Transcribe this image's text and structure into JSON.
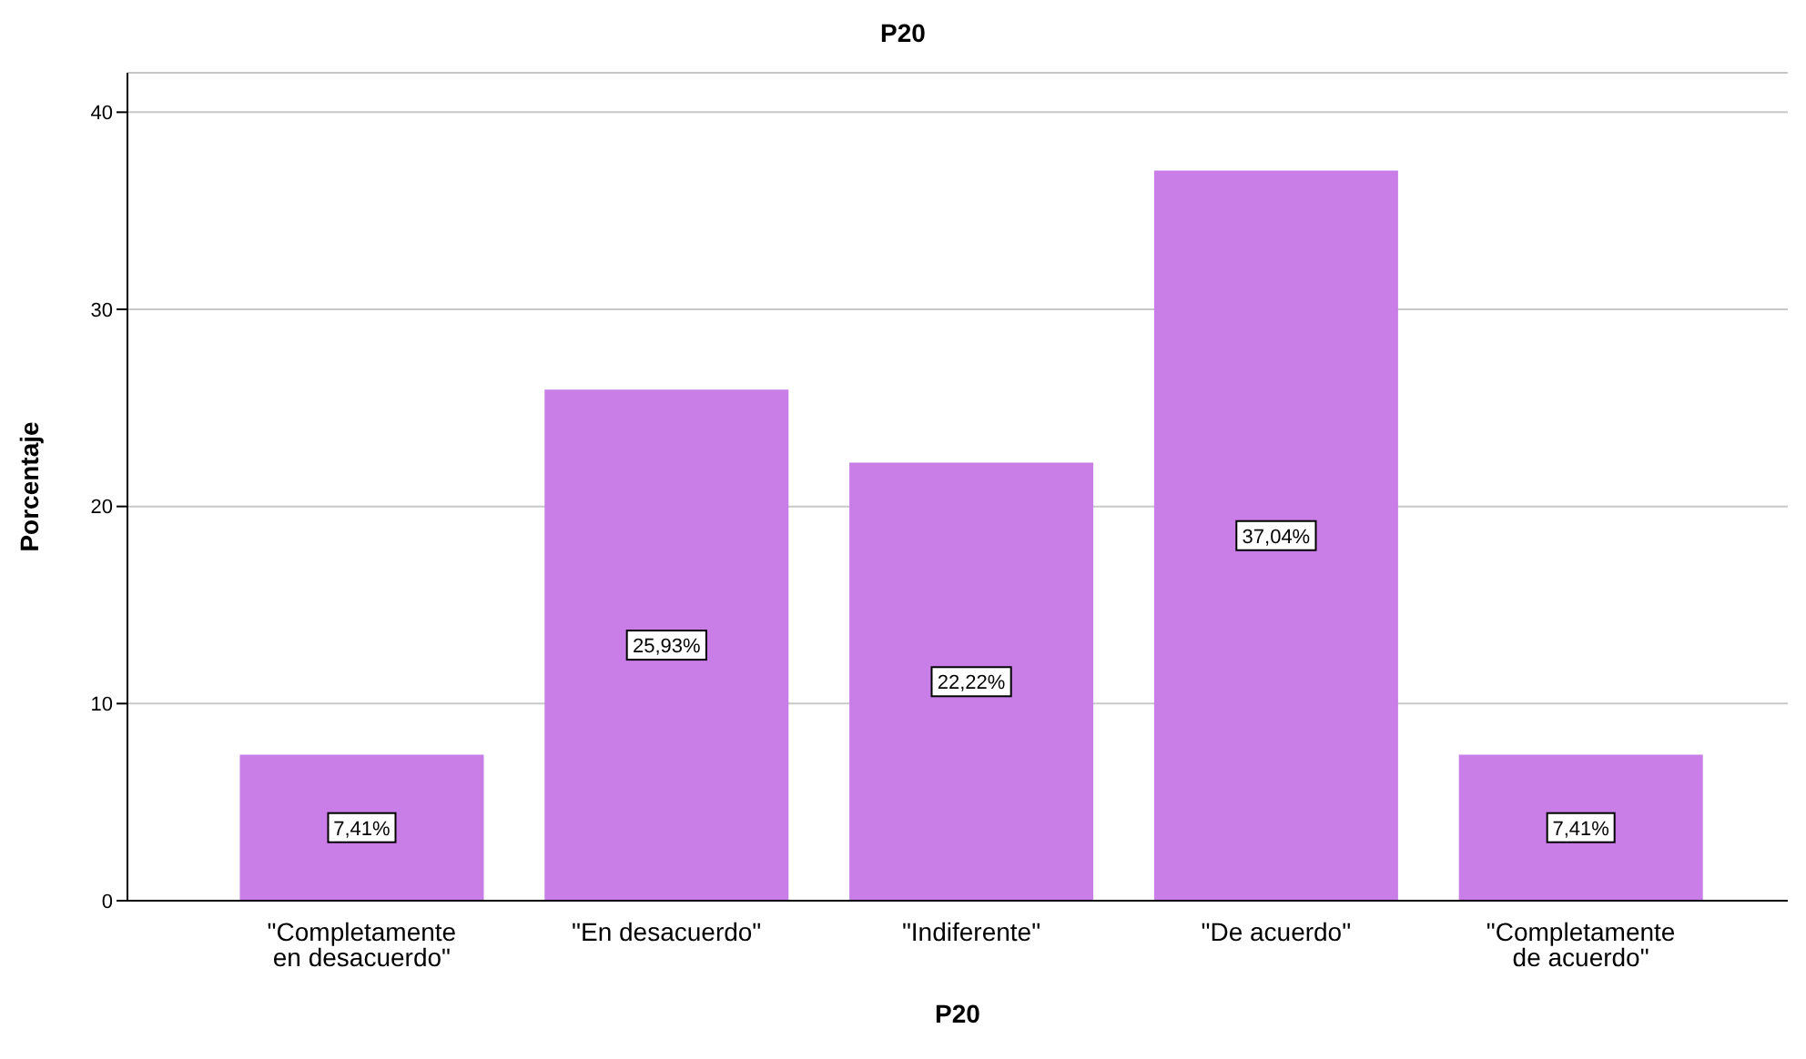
{
  "chart_data": {
    "type": "bar",
    "title": "P20",
    "xlabel": "P20",
    "ylabel": "Porcentaje",
    "categories": [
      "\"Completamente en desacuerdo\"",
      "\"En desacuerdo\"",
      "\"Indiferente\"",
      "\"De acuerdo\"",
      "\"Completamente de acuerdo\""
    ],
    "values": [
      7.41,
      25.93,
      22.22,
      37.04,
      7.41
    ],
    "value_labels": [
      "7,41%",
      "25,93%",
      "22,22%",
      "37,04%",
      "7,41%"
    ],
    "color": "#c87ee6",
    "ylim": [
      0,
      42
    ],
    "yticks": [
      0,
      10,
      20,
      30,
      40
    ],
    "grid": "y"
  }
}
